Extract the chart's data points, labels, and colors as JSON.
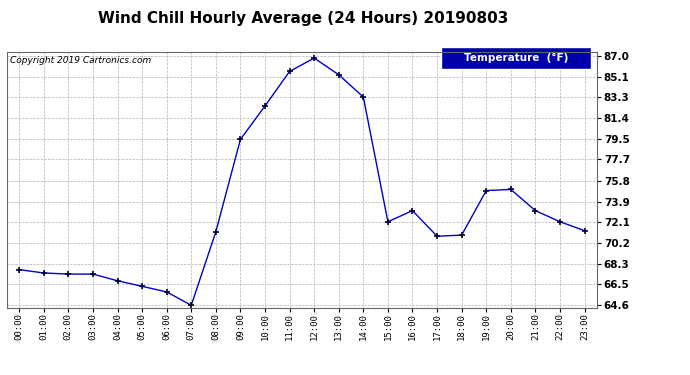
{
  "title": "Wind Chill Hourly Average (24 Hours) 20190803",
  "copyright": "Copyright 2019 Cartronics.com",
  "legend_label": "Temperature  (°F)",
  "x_labels": [
    "00:00",
    "01:00",
    "02:00",
    "03:00",
    "04:00",
    "05:00",
    "06:00",
    "07:00",
    "08:00",
    "09:00",
    "10:00",
    "11:00",
    "12:00",
    "13:00",
    "14:00",
    "15:00",
    "16:00",
    "17:00",
    "18:00",
    "19:00",
    "20:00",
    "21:00",
    "22:00",
    "23:00"
  ],
  "y_values": [
    67.8,
    67.5,
    67.4,
    67.4,
    66.8,
    66.3,
    65.8,
    64.6,
    71.2,
    79.5,
    82.5,
    85.6,
    86.8,
    85.3,
    83.3,
    72.1,
    73.1,
    70.8,
    70.9,
    74.9,
    75.0,
    73.1,
    72.1,
    71.3
  ],
  "ylim_min": 64.6,
  "ylim_max": 87.0,
  "yticks": [
    64.6,
    66.5,
    68.3,
    70.2,
    72.1,
    73.9,
    75.8,
    77.7,
    79.5,
    81.4,
    83.3,
    85.1,
    87.0
  ],
  "line_color": "#0000cc",
  "marker": "+",
  "marker_color": "#000033",
  "bg_color": "#ffffff",
  "plot_bg_color": "#ffffff",
  "grid_color": "#aaaaaa",
  "title_fontsize": 11,
  "copyright_fontsize": 6.5,
  "legend_bg": "#0000aa",
  "legend_text_color": "#ffffff",
  "legend_fontsize": 7.5
}
